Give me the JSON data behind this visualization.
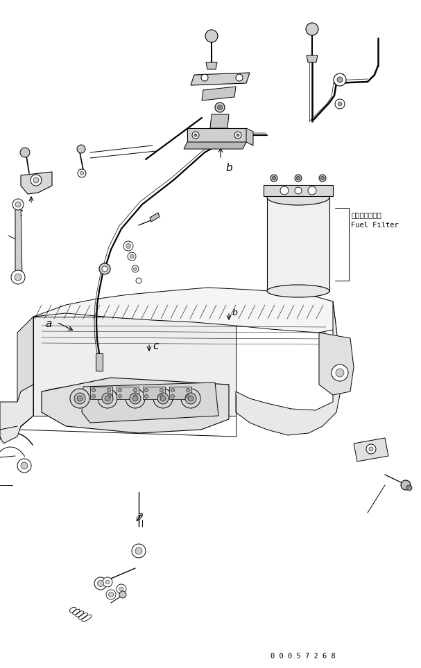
{
  "background_color": "#ffffff",
  "line_color": "#000000",
  "fuel_filter_jp": "フェルフィルタ",
  "fuel_filter_en": "Fuel Filter",
  "part_number": "0 0 0 5 7 2 6 8",
  "fig_width": 6.07,
  "fig_height": 9.64,
  "dpi": 100
}
